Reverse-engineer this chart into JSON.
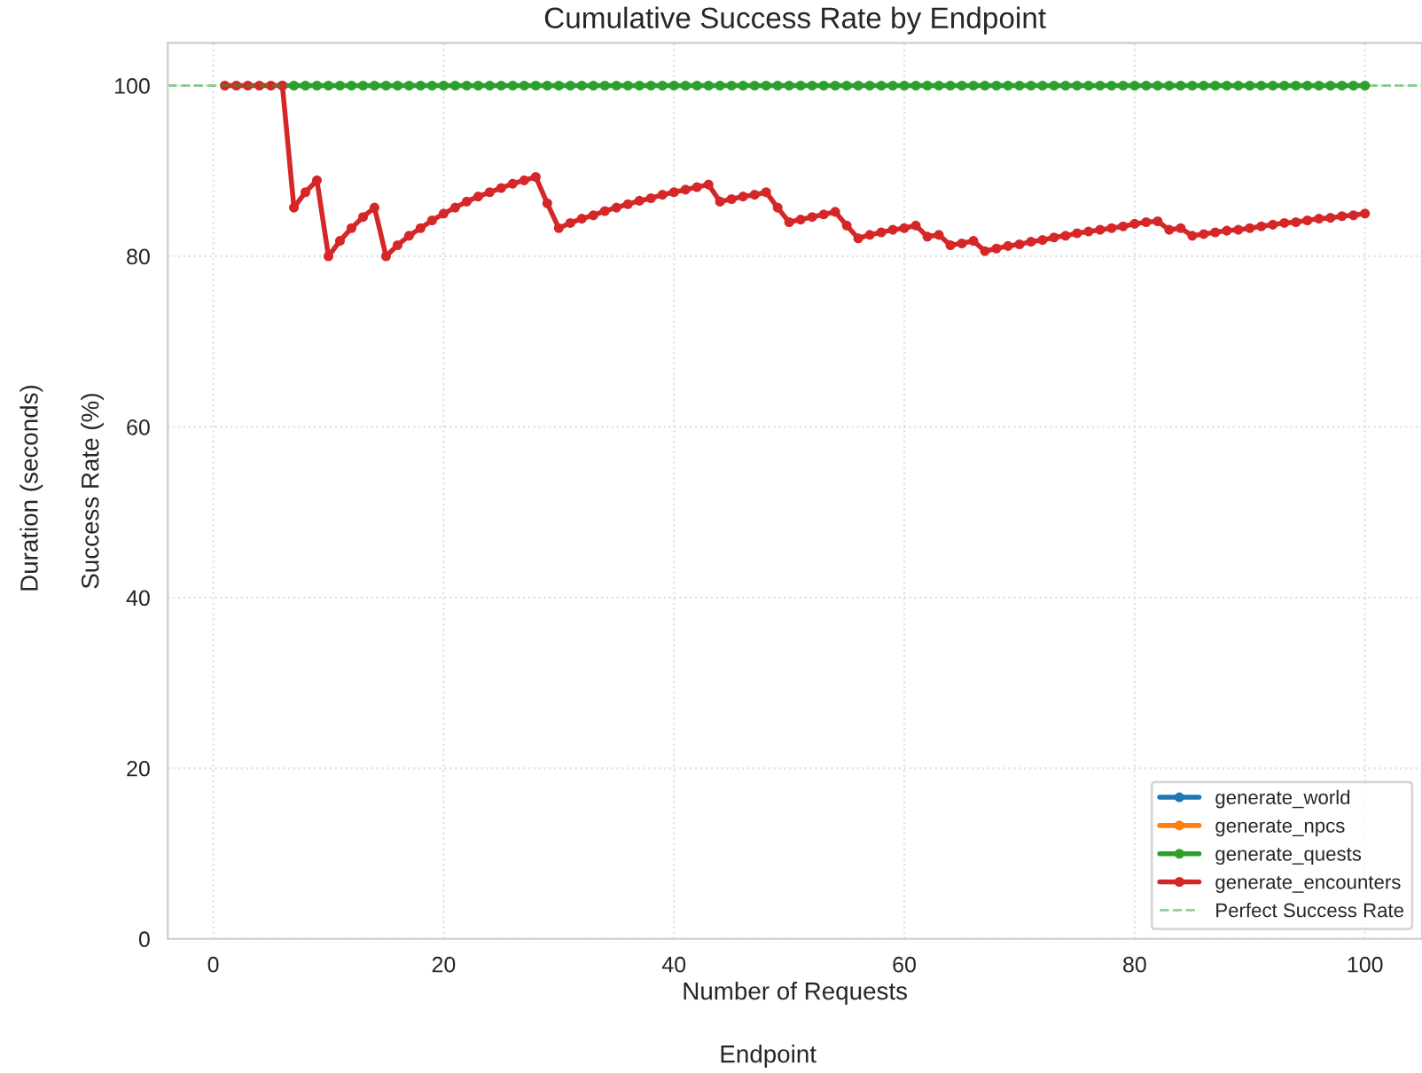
{
  "chart_data": {
    "type": "line",
    "title": "Cumulative Success Rate by Endpoint",
    "xlabel": "Number of Requests",
    "ylabel": "Success Rate (%)",
    "annotations": [
      "Duration (seconds)",
      "Endpoint"
    ],
    "x": [
      1,
      2,
      3,
      4,
      5,
      6,
      7,
      8,
      9,
      10,
      11,
      12,
      13,
      14,
      15,
      16,
      17,
      18,
      19,
      20,
      21,
      22,
      23,
      24,
      25,
      26,
      27,
      28,
      29,
      30,
      31,
      32,
      33,
      34,
      35,
      36,
      37,
      38,
      39,
      40,
      41,
      42,
      43,
      44,
      45,
      46,
      47,
      48,
      49,
      50,
      51,
      52,
      53,
      54,
      55,
      56,
      57,
      58,
      59,
      60,
      61,
      62,
      63,
      64,
      65,
      66,
      67,
      68,
      69,
      70,
      71,
      72,
      73,
      74,
      75,
      76,
      77,
      78,
      79,
      80,
      81,
      82,
      83,
      84,
      85,
      86,
      87,
      88,
      89,
      90,
      91,
      92,
      93,
      94,
      95,
      96,
      97,
      98,
      99,
      100
    ],
    "series": [
      {
        "name": "generate_world",
        "color": "#1f77b4",
        "values": [
          null,
          null,
          null,
          null,
          null,
          null,
          null,
          null,
          null,
          null,
          null,
          null,
          null,
          null,
          null,
          null,
          null,
          null,
          null,
          null,
          null,
          null,
          null,
          null,
          null,
          null,
          null,
          null,
          null,
          null,
          null,
          null,
          null,
          null,
          null,
          null,
          null,
          null,
          null,
          null,
          null,
          null,
          null,
          null,
          null,
          null,
          null,
          null,
          null,
          null,
          null,
          null,
          null,
          null,
          null,
          null,
          null,
          null,
          null,
          null,
          null,
          null,
          null,
          null,
          null,
          null,
          null,
          null,
          null,
          null,
          null,
          null,
          null,
          null,
          null,
          null,
          null,
          null,
          null,
          null,
          null,
          null,
          null,
          null,
          null,
          null,
          null,
          null,
          null,
          null,
          null,
          null,
          null,
          null,
          null,
          null,
          null,
          null,
          null,
          null
        ]
      },
      {
        "name": "generate_npcs",
        "color": "#ff7f0e",
        "values": [
          null,
          null,
          null,
          null,
          null,
          null,
          null,
          null,
          null,
          null,
          null,
          null,
          null,
          null,
          null,
          null,
          null,
          null,
          null,
          null,
          null,
          null,
          null,
          null,
          null,
          null,
          null,
          null,
          null,
          null,
          null,
          null,
          null,
          null,
          null,
          null,
          null,
          null,
          null,
          null,
          null,
          null,
          null,
          null,
          null,
          null,
          null,
          null,
          null,
          null,
          null,
          null,
          null,
          null,
          null,
          null,
          null,
          null,
          null,
          null,
          null,
          null,
          null,
          null,
          null,
          null,
          null,
          null,
          null,
          null,
          null,
          null,
          null,
          null,
          null,
          null,
          null,
          null,
          null,
          null,
          null,
          null,
          null,
          null,
          null,
          null,
          null,
          null,
          null,
          null,
          null,
          null,
          null,
          null,
          null,
          null,
          null,
          null,
          null,
          null
        ]
      },
      {
        "name": "generate_quests",
        "color": "#2ca02c",
        "values": [
          null,
          null,
          null,
          null,
          null,
          100,
          100,
          100,
          100,
          100,
          100,
          100,
          100,
          100,
          100,
          100,
          100,
          100,
          100,
          100,
          100,
          100,
          100,
          100,
          100,
          100,
          100,
          100,
          100,
          100,
          100,
          100,
          100,
          100,
          100,
          100,
          100,
          100,
          100,
          100,
          100,
          100,
          100,
          100,
          100,
          100,
          100,
          100,
          100,
          100,
          100,
          100,
          100,
          100,
          100,
          100,
          100,
          100,
          100,
          100,
          100,
          100,
          100,
          100,
          100,
          100,
          100,
          100,
          100,
          100,
          100,
          100,
          100,
          100,
          100,
          100,
          100,
          100,
          100,
          100,
          100,
          100,
          100,
          100,
          100,
          100,
          100,
          100,
          100,
          100,
          100,
          100,
          100,
          100,
          100,
          100,
          100,
          100,
          100,
          100
        ]
      },
      {
        "name": "generate_encounters",
        "color": "#d62728",
        "values": [
          100,
          100,
          100,
          100,
          100,
          100,
          85.7,
          87.5,
          88.9,
          80.0,
          81.8,
          83.3,
          84.6,
          85.7,
          80.0,
          81.3,
          82.4,
          83.3,
          84.2,
          85.0,
          85.7,
          86.4,
          87.0,
          87.5,
          88.0,
          88.5,
          88.9,
          89.3,
          86.2,
          83.3,
          83.9,
          84.4,
          84.8,
          85.3,
          85.7,
          86.1,
          86.5,
          86.8,
          87.2,
          87.5,
          87.8,
          88.1,
          88.4,
          86.4,
          86.7,
          87.0,
          87.2,
          87.5,
          85.7,
          84.0,
          84.3,
          84.6,
          84.9,
          85.2,
          83.6,
          82.1,
          82.5,
          82.8,
          83.1,
          83.3,
          83.6,
          82.3,
          82.5,
          81.3,
          81.5,
          81.8,
          80.6,
          80.9,
          81.2,
          81.4,
          81.7,
          81.9,
          82.2,
          82.4,
          82.7,
          82.9,
          83.1,
          83.3,
          83.5,
          83.8,
          84.0,
          84.1,
          83.1,
          83.3,
          82.4,
          82.6,
          82.8,
          83.0,
          83.1,
          83.3,
          83.5,
          83.7,
          83.9,
          84.0,
          84.2,
          84.4,
          84.5,
          84.7,
          84.8,
          85.0
        ]
      }
    ],
    "ref_lines": [
      {
        "axis": "y",
        "value": 100,
        "label": "Perfect Success Rate",
        "color": "#2ca02c",
        "line_style": "dashed"
      }
    ],
    "xlim": [
      -3.95,
      104.95
    ],
    "ylim": [
      0,
      105
    ],
    "xticks": [
      0,
      20,
      40,
      60,
      80,
      100
    ],
    "yticks": [
      0,
      20,
      40,
      60,
      80,
      100
    ],
    "grid": true,
    "legend": "bottom right",
    "marker": "circle",
    "line_style": "solid"
  }
}
